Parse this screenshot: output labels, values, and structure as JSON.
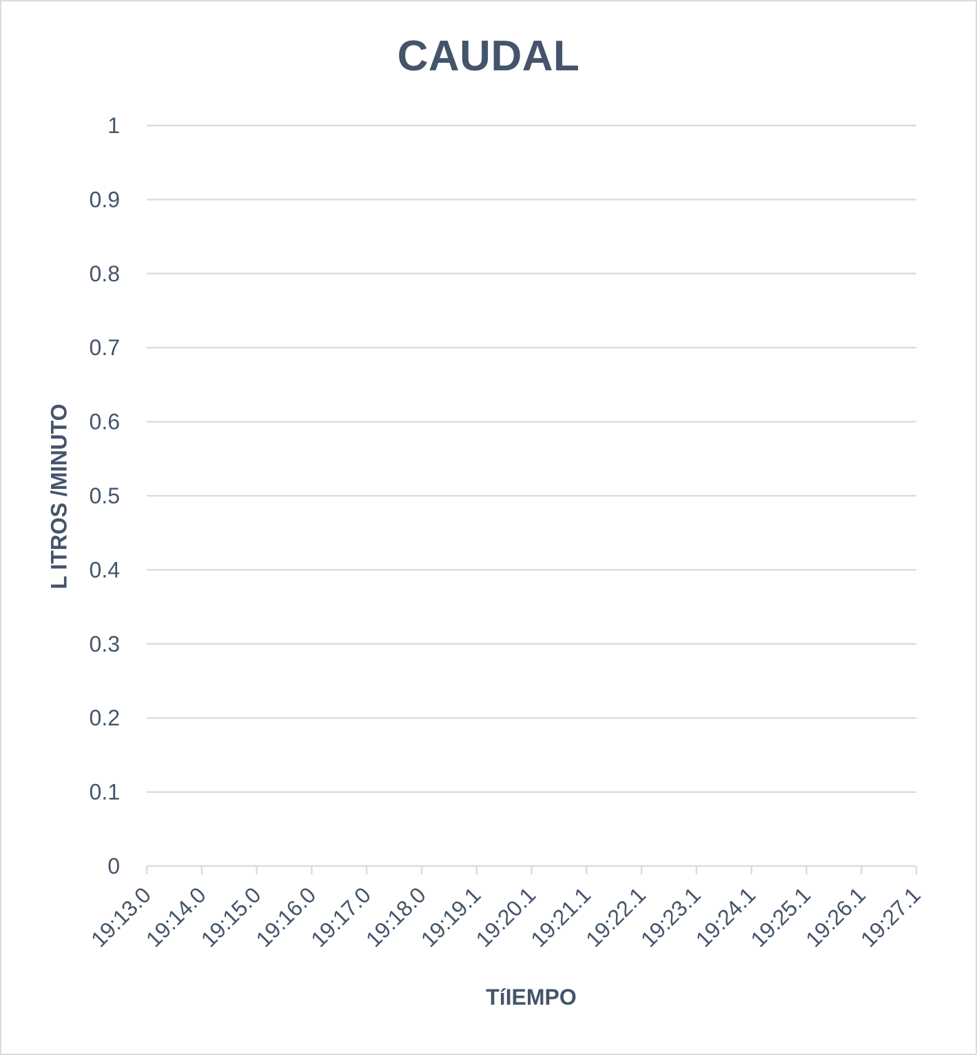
{
  "chart_data": {
    "type": "line",
    "title": "CAUDAL",
    "xlabel": "TíIEMPO",
    "ylabel": "L ITROS /MINUTO",
    "x_categories": [
      "19:13.0",
      "19:14.0",
      "19:15.0",
      "19:16.0",
      "19:17.0",
      "19:18.0",
      "19:19.1",
      "19:20.1",
      "19:21.1",
      "19:22.1",
      "19:23.1",
      "19:24.1",
      "19:25.1",
      "19:26.1",
      "19:27.1"
    ],
    "y_ticks": [
      "0",
      "0.1",
      "0.2",
      "0.3",
      "0.4",
      "0.5",
      "0.6",
      "0.7",
      "0.8",
      "0.9",
      "1"
    ],
    "ylim": [
      0,
      1
    ],
    "grid": true,
    "legend": "none",
    "series": []
  },
  "colors": {
    "text": "#44546a",
    "grid": "#d9dde2",
    "axis": "#d9dde2"
  }
}
